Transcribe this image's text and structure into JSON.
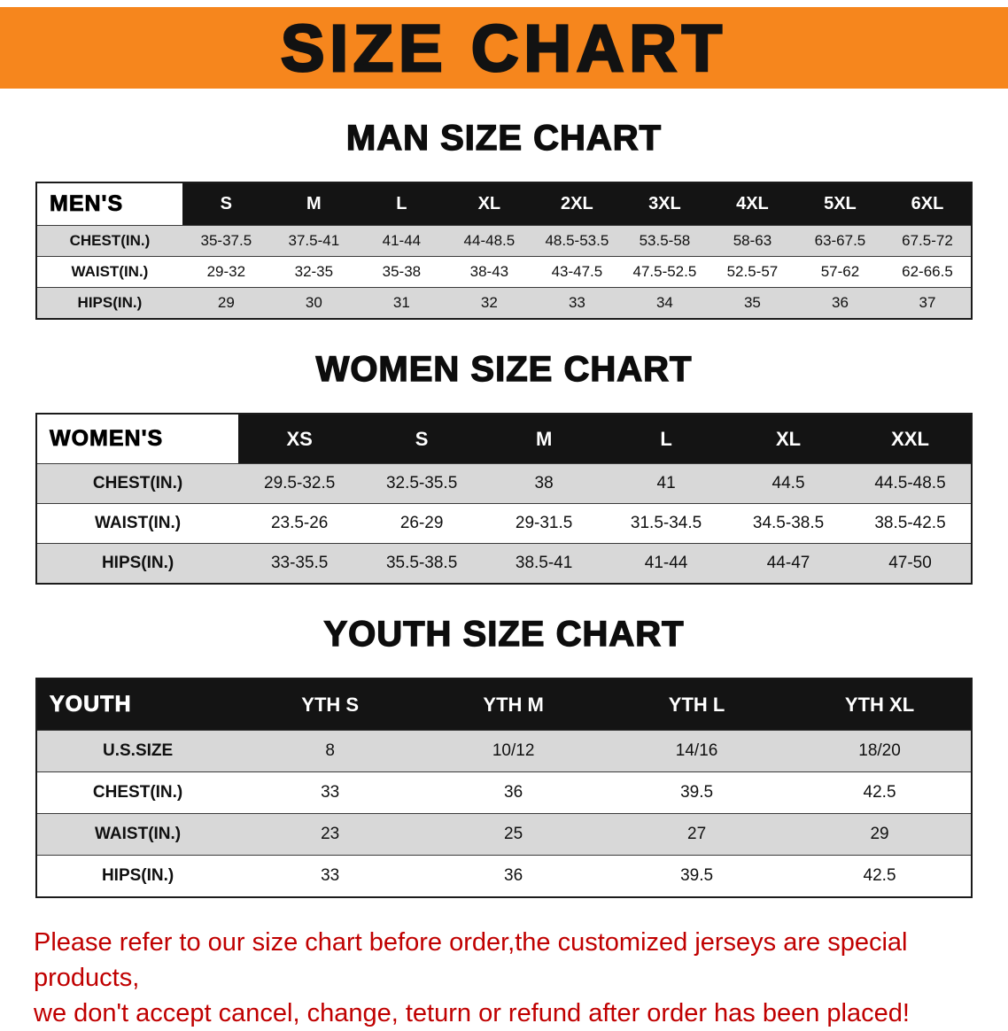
{
  "banner": {
    "title": "SIZE CHART"
  },
  "colors": {
    "banner_bg": "#F6861D",
    "table_header_bg": "#141414",
    "row_alt_gray": "#D8D8D8",
    "notice_text": "#C00000"
  },
  "sections": [
    {
      "heading": "MAN SIZE CHART",
      "table": {
        "header": [
          "MEN'S",
          "S",
          "M",
          "L",
          "XL",
          "2XL",
          "3XL",
          "4XL",
          "5XL",
          "6XL"
        ],
        "rows": [
          [
            "CHEST(IN.)",
            "35-37.5",
            "37.5-41",
            "41-44",
            "44-48.5",
            "48.5-53.5",
            "53.5-58",
            "58-63",
            "63-67.5",
            "67.5-72"
          ],
          [
            "WAIST(IN.)",
            "29-32",
            "32-35",
            "35-38",
            "38-43",
            "43-47.5",
            "47.5-52.5",
            "52.5-57",
            "57-62",
            "62-66.5"
          ],
          [
            "HIPS(IN.)",
            "29",
            "30",
            "31",
            "32",
            "33",
            "34",
            "35",
            "36",
            "37"
          ]
        ]
      }
    },
    {
      "heading": "WOMEN SIZE CHART",
      "table": {
        "header": [
          "WOMEN'S",
          "XS",
          "S",
          "M",
          "L",
          "XL",
          "XXL"
        ],
        "rows": [
          [
            "CHEST(IN.)",
            "29.5-32.5",
            "32.5-35.5",
            "38",
            "41",
            "44.5",
            "44.5-48.5"
          ],
          [
            "WAIST(IN.)",
            "23.5-26",
            "26-29",
            "29-31.5",
            "31.5-34.5",
            "34.5-38.5",
            "38.5-42.5"
          ],
          [
            "HIPS(IN.)",
            "33-35.5",
            "35.5-38.5",
            "38.5-41",
            "41-44",
            "44-47",
            "47-50"
          ]
        ]
      }
    },
    {
      "heading": "YOUTH SIZE CHART",
      "table": {
        "header": [
          "YOUTH",
          "YTH S",
          "YTH M",
          "YTH L",
          "YTH XL"
        ],
        "rows": [
          [
            "U.S.SIZE",
            "8",
            "10/12",
            "14/16",
            "18/20"
          ],
          [
            "CHEST(IN.)",
            "33",
            "36",
            "39.5",
            "42.5"
          ],
          [
            "WAIST(IN.)",
            "23",
            "25",
            "27",
            "29"
          ],
          [
            "HIPS(IN.)",
            "33",
            "36",
            "39.5",
            "42.5"
          ]
        ]
      }
    }
  ],
  "notice": {
    "line1": "Please refer to our size chart before order,the customized jerseys are special products,",
    "line2": "we don't accept cancel, change, teturn or refund after order has been placed!"
  }
}
